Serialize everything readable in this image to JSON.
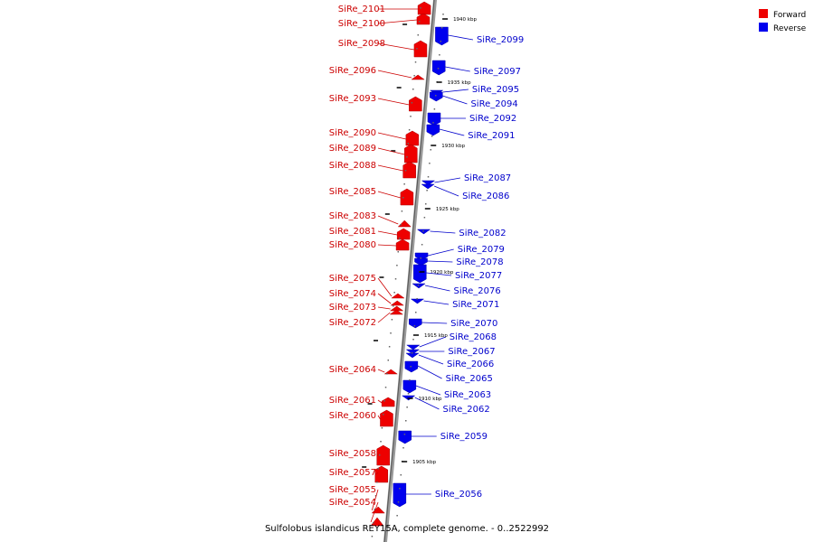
{
  "caption": "Sulfolobus islandicus REY15A, complete genome. - 0..2522992",
  "legend": [
    {
      "label": "Forward",
      "color": "#ee0000"
    },
    {
      "label": "Reverse",
      "color": "#0000ee"
    }
  ],
  "ticks": [
    {
      "label": "1940 kbp"
    },
    {
      "label": "1935 kbp"
    },
    {
      "label": "1930 kbp"
    },
    {
      "label": "1925 kbp"
    },
    {
      "label": "1920 kbp"
    },
    {
      "label": "1915 kbp"
    },
    {
      "label": "1910 kbp"
    },
    {
      "label": "1905 kbp"
    }
  ],
  "forward_genes": [
    {
      "name": "SiRe_2101"
    },
    {
      "name": "SiRe_2100"
    },
    {
      "name": "SiRe_2098"
    },
    {
      "name": "SiRe_2096"
    },
    {
      "name": "SiRe_2093"
    },
    {
      "name": "SiRe_2090"
    },
    {
      "name": "SiRe_2089"
    },
    {
      "name": "SiRe_2088"
    },
    {
      "name": "SiRe_2085"
    },
    {
      "name": "SiRe_2083"
    },
    {
      "name": "SiRe_2081"
    },
    {
      "name": "SiRe_2080"
    },
    {
      "name": "SiRe_2075"
    },
    {
      "name": "SiRe_2074"
    },
    {
      "name": "SiRe_2073"
    },
    {
      "name": "SiRe_2072"
    },
    {
      "name": "SiRe_2064"
    },
    {
      "name": "SiRe_2061"
    },
    {
      "name": "SiRe_2060"
    },
    {
      "name": "SiRe_2058"
    },
    {
      "name": "SiRe_2057"
    },
    {
      "name": "SiRe_2055"
    },
    {
      "name": "SiRe_2054"
    }
  ],
  "reverse_genes": [
    {
      "name": "SiRe_2099"
    },
    {
      "name": "SiRe_2097"
    },
    {
      "name": "SiRe_2095"
    },
    {
      "name": "SiRe_2094"
    },
    {
      "name": "SiRe_2092"
    },
    {
      "name": "SiRe_2091"
    },
    {
      "name": "SiRe_2087"
    },
    {
      "name": "SiRe_2086"
    },
    {
      "name": "SiRe_2082"
    },
    {
      "name": "SiRe_2079"
    },
    {
      "name": "SiRe_2078"
    },
    {
      "name": "SiRe_2077"
    },
    {
      "name": "SiRe_2076"
    },
    {
      "name": "SiRe_2071"
    },
    {
      "name": "SiRe_2070"
    },
    {
      "name": "SiRe_2068"
    },
    {
      "name": "SiRe_2067"
    },
    {
      "name": "SiRe_2066"
    },
    {
      "name": "SiRe_2065"
    },
    {
      "name": "SiRe_2063"
    },
    {
      "name": "SiRe_2062"
    },
    {
      "name": "SiRe_2059"
    },
    {
      "name": "SiRe_2056"
    }
  ]
}
